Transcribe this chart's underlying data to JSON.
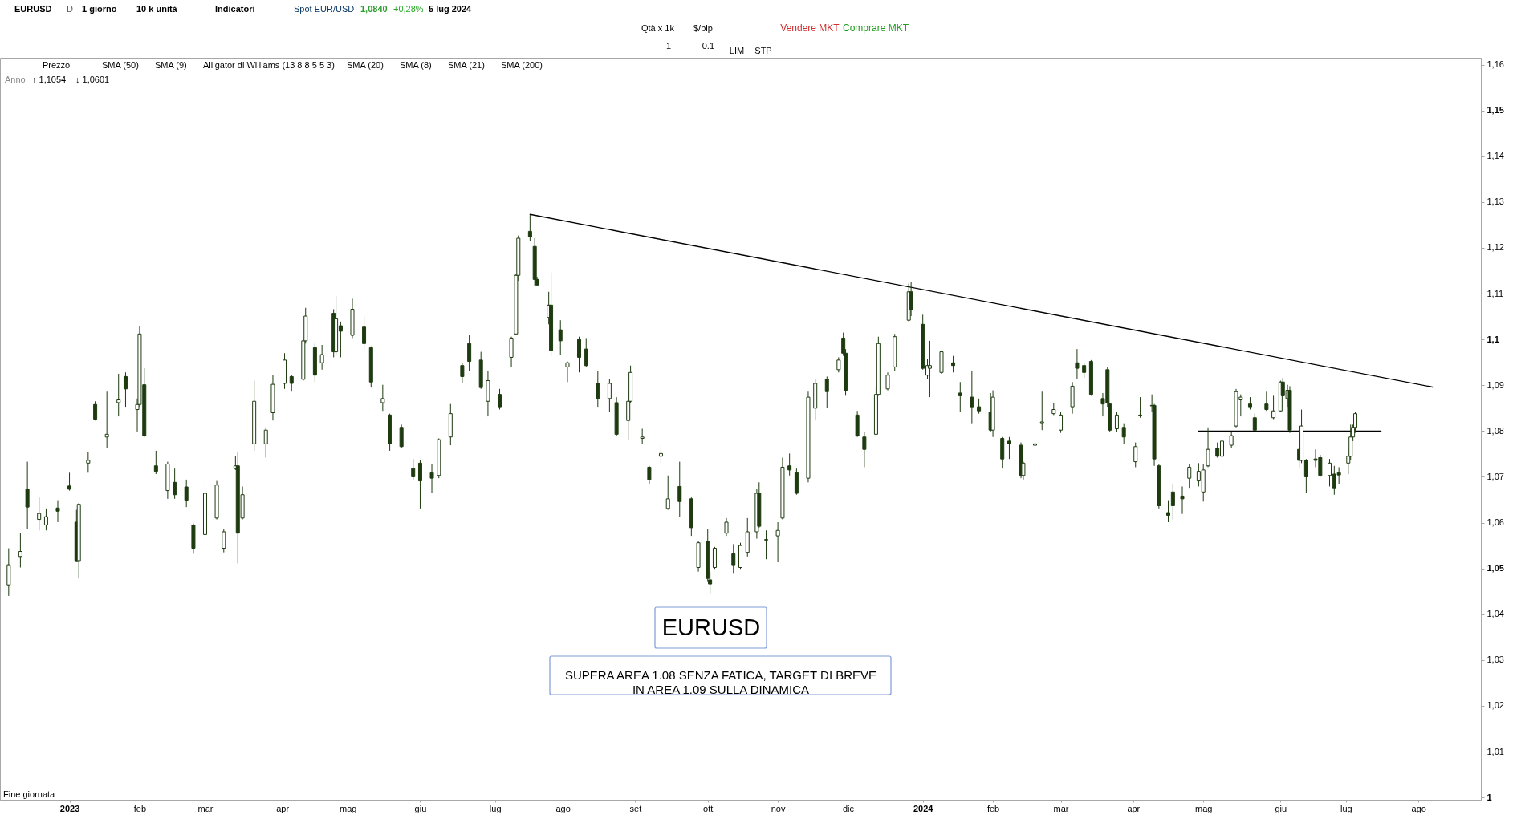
{
  "chart_data": {
    "type": "candlestick",
    "color": "#1e3b10",
    "x": [
      "2022-12-07",
      "2022-12-12",
      "2022-12-15",
      "2022-12-20",
      "2022-12-23",
      "2022-12-28",
      "2023-01-02",
      "2023-01-05",
      "2023-01-06",
      "2023-01-10",
      "2023-01-13",
      "2023-01-18",
      "2023-01-23",
      "2023-01-26",
      "2023-01-31",
      "2023-02-01",
      "2023-02-03",
      "2023-02-08",
      "2023-02-13",
      "2023-02-16",
      "2023-02-21",
      "2023-02-24",
      "2023-03-01",
      "2023-03-06",
      "2023-03-09",
      "2023-03-14",
      "2023-03-15",
      "2023-03-17",
      "2023-03-22",
      "2023-03-27",
      "2023-03-30",
      "2023-04-04",
      "2023-04-07",
      "2023-04-12",
      "2023-04-13",
      "2023-04-17",
      "2023-04-20",
      "2023-04-25",
      "2023-04-26",
      "2023-04-28",
      "2023-05-03",
      "2023-05-08",
      "2023-05-11",
      "2023-05-16",
      "2023-05-19",
      "2023-05-24",
      "2023-05-29",
      "2023-06-01",
      "2023-06-06",
      "2023-06-09",
      "2023-06-14",
      "2023-06-19",
      "2023-06-22",
      "2023-06-27",
      "2023-06-30",
      "2023-07-05",
      "2023-07-10",
      "2023-07-12",
      "2023-07-13",
      "2023-07-18",
      "2023-07-20",
      "2023-07-21",
      "2023-07-26",
      "2023-07-27",
      "2023-07-31",
      "2023-08-03",
      "2023-08-08",
      "2023-08-11",
      "2023-08-16",
      "2023-08-21",
      "2023-08-24",
      "2023-08-29",
      "2023-08-30",
      "2023-09-04",
      "2023-09-07",
      "2023-09-12",
      "2023-09-15",
      "2023-09-20",
      "2023-09-25",
      "2023-09-28",
      "2023-10-02",
      "2023-10-03",
      "2023-10-05",
      "2023-10-10",
      "2023-10-13",
      "2023-10-16",
      "2023-10-19",
      "2023-10-23",
      "2023-10-24",
      "2023-10-27",
      "2023-11-01",
      "2023-11-03",
      "2023-11-06",
      "2023-11-09",
      "2023-11-14",
      "2023-11-17",
      "2023-11-22",
      "2023-11-27",
      "2023-11-29",
      "2023-11-30",
      "2023-12-05",
      "2023-12-08",
      "2023-12-13",
      "2023-12-14",
      "2023-12-18",
      "2023-12-21",
      "2023-12-27",
      "2023-12-28",
      "2024-01-02",
      "2024-01-04",
      "2024-01-05",
      "2024-01-10",
      "2024-01-15",
      "2024-01-18",
      "2024-01-23",
      "2024-01-26",
      "2024-01-31",
      "2024-02-01",
      "2024-02-05",
      "2024-02-08",
      "2024-02-13",
      "2024-02-14",
      "2024-02-19",
      "2024-02-22",
      "2024-02-27",
      "2024-03-01",
      "2024-03-06",
      "2024-03-08",
      "2024-03-11",
      "2024-03-14",
      "2024-03-19",
      "2024-03-21",
      "2024-03-22",
      "2024-03-25",
      "2024-03-28",
      "2024-04-02",
      "2024-04-04",
      "2024-04-09",
      "2024-04-10",
      "2024-04-12",
      "2024-04-16",
      "2024-04-18",
      "2024-04-22",
      "2024-04-25",
      "2024-04-29",
      "2024-05-01",
      "2024-05-03",
      "2024-05-07",
      "2024-05-09",
      "2024-05-13",
      "2024-05-15",
      "2024-05-17",
      "2024-05-21",
      "2024-05-23",
      "2024-05-28",
      "2024-05-31",
      "2024-06-03",
      "2024-06-04",
      "2024-06-06",
      "2024-06-07",
      "2024-06-11",
      "2024-06-12",
      "2024-06-14",
      "2024-06-18",
      "2024-06-20",
      "2024-06-24",
      "2024-06-26",
      "2024-06-28",
      "2024-07-02",
      "2024-07-03",
      "2024-07-04",
      "2024-07-05"
    ],
    "ohlc": [
      [
        1.0464,
        1.0544,
        1.044,
        1.0508
      ],
      [
        1.0526,
        1.0577,
        1.0502,
        1.0537
      ],
      [
        1.0673,
        1.0733,
        1.0586,
        1.0634
      ],
      [
        1.0607,
        1.0655,
        1.0583,
        1.062
      ],
      [
        1.0595,
        1.0631,
        1.0583,
        1.0613
      ],
      [
        1.0632,
        1.0649,
        1.0601,
        1.0625
      ],
      [
        1.068,
        1.0709,
        1.067,
        1.0673
      ],
      [
        1.0601,
        1.0628,
        1.0514,
        1.0517
      ],
      [
        1.0517,
        1.0643,
        1.0478,
        1.064
      ],
      [
        1.073,
        1.0754,
        1.0709,
        1.0736
      ],
      [
        1.0858,
        1.0865,
        1.0823,
        1.0826
      ],
      [
        1.0787,
        1.0886,
        1.0763,
        1.0793
      ],
      [
        1.0862,
        1.0925,
        1.0832,
        1.0868
      ],
      [
        1.0919,
        1.0928,
        1.0853,
        1.0892
      ],
      [
        1.0847,
        1.0871,
        1.0799,
        1.0858
      ],
      [
        1.0858,
        1.103,
        1.0853,
        1.1012
      ],
      [
        1.0901,
        1.0937,
        1.0787,
        1.079
      ],
      [
        1.0724,
        1.0757,
        1.0706,
        1.0712
      ],
      [
        1.067,
        1.0733,
        1.0652,
        1.0728
      ],
      [
        1.0688,
        1.0718,
        1.0652,
        1.0661
      ],
      [
        1.0678,
        1.0694,
        1.0634,
        1.0649
      ],
      [
        1.0594,
        1.0598,
        1.0532,
        1.0544
      ],
      [
        1.0574,
        1.0688,
        1.0562,
        1.0664
      ],
      [
        1.061,
        1.0691,
        1.0607,
        1.0682
      ],
      [
        1.0544,
        1.0586,
        1.0535,
        1.058
      ],
      [
        1.0718,
        1.0745,
        1.0715,
        1.0724
      ],
      [
        1.0724,
        1.0754,
        1.0511,
        1.0577
      ],
      [
        1.061,
        1.0679,
        1.0607,
        1.0661
      ],
      [
        1.0772,
        1.091,
        1.0757,
        1.0865
      ],
      [
        1.0772,
        1.0808,
        1.0742,
        1.0802
      ],
      [
        1.084,
        1.0922,
        1.0823,
        1.0902
      ],
      [
        1.0904,
        1.097,
        1.0892,
        1.0955
      ],
      [
        1.0919,
        1.0922,
        1.0886,
        1.0904
      ],
      [
        1.0913,
        1.1003,
        1.091,
        1.0997
      ],
      [
        1.0997,
        1.1069,
        1.0991,
        1.1051
      ],
      [
        1.0982,
        1.0991,
        1.0907,
        1.0922
      ],
      [
        1.0949,
        1.0988,
        1.0934,
        1.0967
      ],
      [
        1.1057,
        1.1066,
        1.0961,
        1.0973
      ],
      [
        1.0973,
        1.1095,
        1.0967,
        1.1045
      ],
      [
        1.103,
        1.1039,
        1.0961,
        1.1018
      ],
      [
        1.1009,
        1.1089,
        1.1003,
        1.1066
      ],
      [
        1.1027,
        1.1051,
        1.0979,
        1.0991
      ],
      [
        1.0982,
        1.0985,
        1.0895,
        1.0907
      ],
      [
        1.0862,
        1.0901,
        1.0844,
        1.0871
      ],
      [
        1.0835,
        1.0838,
        1.0757,
        1.0772
      ],
      [
        1.0808,
        1.0814,
        1.0763,
        1.0766
      ],
      [
        1.0718,
        1.0739,
        1.0694,
        1.07
      ],
      [
        1.073,
        1.0736,
        1.0631,
        1.0691
      ],
      [
        1.0709,
        1.0727,
        1.0664,
        1.0697
      ],
      [
        1.0703,
        1.0784,
        1.0697,
        1.0781
      ],
      [
        1.0787,
        1.0859,
        1.0769,
        1.0838
      ],
      [
        1.0943,
        1.0949,
        1.0904,
        1.0919
      ],
      [
        1.0991,
        1.1009,
        1.0931,
        1.0952
      ],
      [
        1.0955,
        1.0973,
        1.0892,
        1.0895
      ],
      [
        1.0865,
        1.0931,
        1.0832,
        1.091
      ],
      [
        1.088,
        1.0892,
        1.0847,
        1.0853
      ],
      [
        1.0961,
        1.1006,
        1.094,
        1.1003
      ],
      [
        1.1012,
        1.1143,
        1.1009,
        1.114
      ],
      [
        1.114,
        1.1227,
        1.1128,
        1.1221
      ],
      [
        1.1236,
        1.1272,
        1.1215,
        1.1224
      ],
      [
        1.1203,
        1.1221,
        1.1116,
        1.1131
      ],
      [
        1.1131,
        1.1137,
        1.1116,
        1.1119
      ],
      [
        1.1048,
        1.1104,
        1.1033,
        1.1075
      ],
      [
        1.1075,
        1.1146,
        1.0964,
        1.0976
      ],
      [
        1.1021,
        1.1042,
        1.0967,
        1.0997
      ],
      [
        1.094,
        1.0952,
        1.0907,
        1.0949
      ],
      [
        1.1,
        1.1006,
        1.0928,
        1.0961
      ],
      [
        1.0979,
        1.1003,
        1.094,
        1.0943
      ],
      [
        1.0904,
        1.0931,
        1.0853,
        1.0871
      ],
      [
        1.0871,
        1.0913,
        1.0841,
        1.0904
      ],
      [
        1.0862,
        1.0874,
        1.079,
        1.0793
      ],
      [
        1.0823,
        1.0889,
        1.0781,
        1.0865
      ],
      [
        1.0865,
        1.0943,
        1.0862,
        1.0928
      ],
      [
        1.0784,
        1.0805,
        1.0772,
        1.0787
      ],
      [
        1.0721,
        1.0724,
        1.0685,
        1.0694
      ],
      [
        1.0745,
        1.0766,
        1.073,
        1.0751
      ],
      [
        1.0631,
        1.0703,
        1.0628,
        1.0652
      ],
      [
        1.0679,
        1.0733,
        1.0613,
        1.0646
      ],
      [
        1.0652,
        1.0655,
        1.0571,
        1.0589
      ],
      [
        1.0502,
        1.0559,
        1.0493,
        1.0556
      ],
      [
        1.0559,
        1.0586,
        1.0472,
        1.0478
      ],
      [
        1.0475,
        1.0493,
        1.0446,
        1.0466
      ],
      [
        1.0502,
        1.0547,
        1.0499,
        1.0544
      ],
      [
        1.0577,
        1.061,
        1.0571,
        1.0601
      ],
      [
        1.0532,
        1.0553,
        1.049,
        1.0508
      ],
      [
        1.0502,
        1.0556,
        1.0499,
        1.055
      ],
      [
        1.0535,
        1.061,
        1.0526,
        1.058
      ],
      [
        1.058,
        1.0673,
        1.0565,
        1.0664
      ],
      [
        1.0664,
        1.0688,
        1.0589,
        1.0592
      ],
      [
        1.0563,
        1.0583,
        1.052,
        1.0562
      ],
      [
        1.0571,
        1.0601,
        1.0514,
        1.0583
      ],
      [
        1.061,
        1.0742,
        1.0607,
        1.0721
      ],
      [
        1.0724,
        1.0751,
        1.0703,
        1.0715
      ],
      [
        1.0709,
        1.0718,
        1.0661,
        1.0664
      ],
      [
        1.0697,
        1.0886,
        1.0688,
        1.0874
      ],
      [
        1.085,
        1.0913,
        1.0823,
        1.0904
      ],
      [
        1.0913,
        1.0919,
        1.085,
        1.0886
      ],
      [
        1.0934,
        1.0961,
        1.0928,
        1.0955
      ],
      [
        1.1003,
        1.1015,
        1.0964,
        1.097
      ],
      [
        1.097,
        1.0979,
        1.0877,
        1.0889
      ],
      [
        1.0835,
        1.0844,
        1.0787,
        1.079
      ],
      [
        1.0787,
        1.0799,
        1.0721,
        1.076
      ],
      [
        1.0793,
        1.0895,
        1.0787,
        1.088
      ],
      [
        1.088,
        1.1006,
        1.0877,
        1.0991
      ],
      [
        1.0892,
        1.0928,
        1.0889,
        1.0922
      ],
      [
        1.094,
        1.1012,
        1.0931,
        1.1006
      ],
      [
        1.1042,
        1.1122,
        1.1039,
        1.1104
      ],
      [
        1.1104,
        1.1125,
        1.1051,
        1.1066
      ],
      [
        1.1033,
        1.1054,
        1.0934,
        1.0937
      ],
      [
        1.0922,
        1.0958,
        1.0913,
        1.0943
      ],
      [
        1.0937,
        1.0997,
        1.0874,
        1.0943
      ],
      [
        1.0928,
        1.0976,
        1.0925,
        1.0973
      ],
      [
        1.0949,
        1.0964,
        1.0928,
        1.0943
      ],
      [
        1.0883,
        1.0907,
        1.0841,
        1.0877
      ],
      [
        1.0874,
        1.0931,
        1.0817,
        1.0853
      ],
      [
        1.0853,
        1.0871,
        1.0838,
        1.0844
      ],
      [
        1.0841,
        1.0883,
        1.0799,
        1.0802
      ],
      [
        1.0802,
        1.0889,
        1.0787,
        1.0874
      ],
      [
        1.0784,
        1.0787,
        1.0718,
        1.0739
      ],
      [
        1.0778,
        1.0787,
        1.0739,
        1.0772
      ],
      [
        1.0769,
        1.0775,
        1.0697,
        1.0703
      ],
      [
        1.0703,
        1.0733,
        1.0694,
        1.073
      ],
      [
        1.0769,
        1.0781,
        1.0751,
        1.0772
      ],
      [
        1.0818,
        1.0886,
        1.0802,
        1.082
      ],
      [
        1.0838,
        1.0862,
        1.0835,
        1.0847
      ],
      [
        1.0802,
        1.0841,
        1.0796,
        1.0835
      ],
      [
        1.0853,
        1.0907,
        1.0838,
        1.0898
      ],
      [
        1.0949,
        1.0979,
        1.0913,
        1.0937
      ],
      [
        1.0943,
        1.0949,
        1.0916,
        1.0928
      ],
      [
        1.0952,
        1.0955,
        1.0877,
        1.088
      ],
      [
        1.0871,
        1.0883,
        1.0832,
        1.0859
      ],
      [
        1.0934,
        1.094,
        1.0853,
        1.0862
      ],
      [
        1.0859,
        1.0862,
        1.0799,
        1.0802
      ],
      [
        1.0805,
        1.0841,
        1.0799,
        1.0835
      ],
      [
        1.0808,
        1.0817,
        1.0772,
        1.0787
      ],
      [
        1.0733,
        1.0775,
        1.0721,
        1.0766
      ],
      [
        1.0834,
        1.0874,
        1.0829,
        1.0835
      ],
      [
        1.0855,
        1.088,
        1.0841,
        1.0856
      ],
      [
        1.0856,
        1.0859,
        1.0724,
        1.0739
      ],
      [
        1.0724,
        1.0727,
        1.0631,
        1.0637
      ],
      [
        1.0622,
        1.0649,
        1.0601,
        1.0616
      ],
      [
        1.0667,
        1.0685,
        1.0607,
        1.0637
      ],
      [
        1.0658,
        1.0679,
        1.0619,
        1.0652
      ],
      [
        1.0697,
        1.0727,
        1.0676,
        1.0721
      ],
      [
        1.0691,
        1.073,
        1.0679,
        1.0712
      ],
      [
        1.0667,
        1.0727,
        1.0646,
        1.0715
      ],
      [
        1.0724,
        1.0808,
        1.0721,
        1.076
      ],
      [
        1.0763,
        1.0775,
        1.0742,
        1.0745
      ],
      [
        1.0745,
        1.0784,
        1.0721,
        1.0778
      ],
      [
        1.0769,
        1.0799,
        1.0763,
        1.079
      ],
      [
        1.0811,
        1.0892,
        1.0808,
        1.0886
      ],
      [
        1.0868,
        1.088,
        1.0832,
        1.0874
      ],
      [
        1.0859,
        1.0874,
        1.0847,
        1.0853
      ],
      [
        1.0829,
        1.0838,
        1.0799,
        1.0802
      ],
      [
        1.0859,
        1.0886,
        1.0844,
        1.0847
      ],
      [
        1.0829,
        1.0877,
        1.0826,
        1.0844
      ],
      [
        1.0844,
        1.091,
        1.0841,
        1.0907
      ],
      [
        1.0907,
        1.0916,
        1.0853,
        1.0877
      ],
      [
        1.0871,
        1.0901,
        1.0853,
        1.0889
      ],
      [
        1.0889,
        1.0898,
        1.0796,
        1.0802
      ],
      [
        1.076,
        1.0775,
        1.0718,
        1.0736
      ],
      [
        1.0736,
        1.0847,
        1.073,
        1.0811
      ],
      [
        1.0736,
        1.0739,
        1.0664,
        1.07
      ],
      [
        1.0739,
        1.076,
        1.0721,
        1.0736
      ],
      [
        1.0742,
        1.0748,
        1.07,
        1.0703
      ],
      [
        1.0703,
        1.0739,
        1.0679,
        1.073
      ],
      [
        1.0706,
        1.0724,
        1.0661,
        1.0676
      ],
      [
        1.0709,
        1.0721,
        1.0685,
        1.0704
      ],
      [
        1.073,
        1.076,
        1.0706,
        1.0745
      ],
      [
        1.0745,
        1.0814,
        1.0736,
        1.0787
      ],
      [
        1.0787,
        1.0814,
        1.0778,
        1.0808
      ],
      [
        1.0808,
        1.0841,
        1.0796,
        1.0838
      ]
    ],
    "series": [
      {
        "type": "line",
        "x": [
          "2023-07-18",
          "2024-08-07"
        ],
        "values": [
          1.1273,
          1.0896
        ],
        "color": "#000000"
      },
      {
        "type": "line",
        "x": [
          "2024-04-29",
          "2024-07-16"
        ],
        "values": [
          1.08,
          1.08
        ],
        "color": "#000000"
      }
    ],
    "xlim": [
      "2022-12-05",
      "2024-08-26"
    ],
    "xticks": [
      {
        "value": "2023-01-02",
        "label": "2023"
      },
      {
        "value": "2023-02-01",
        "label": "feb"
      },
      {
        "value": "2023-03-01",
        "label": "mar"
      },
      {
        "value": "2023-04-03",
        "label": "apr"
      },
      {
        "value": "2023-05-01",
        "label": "mag"
      },
      {
        "value": "2023-06-01",
        "label": "giu"
      },
      {
        "value": "2023-07-03",
        "label": "lug"
      },
      {
        "value": "2023-08-01",
        "label": "ago"
      },
      {
        "value": "2023-09-01",
        "label": "set"
      },
      {
        "value": "2023-10-02",
        "label": "ott"
      },
      {
        "value": "2023-11-01",
        "label": "nov"
      },
      {
        "value": "2023-12-01",
        "label": "dic"
      },
      {
        "value": "2024-01-02",
        "label": "2024"
      },
      {
        "value": "2024-02-01",
        "label": "feb"
      },
      {
        "value": "2024-03-01",
        "label": "mar"
      },
      {
        "value": "2024-04-01",
        "label": "apr"
      },
      {
        "value": "2024-05-01",
        "label": "mag"
      },
      {
        "value": "2024-06-03",
        "label": "giu"
      },
      {
        "value": "2024-07-01",
        "label": "lug"
      },
      {
        "value": "2024-08-01",
        "label": "ago"
      }
    ],
    "ylim": [
      0.9995,
      1.1615
    ],
    "yticks": [
      1,
      {
        "value": 1.01,
        "label": "1,01"
      },
      {
        "value": 1.02,
        "label": "1,02"
      },
      {
        "value": 1.03,
        "label": "1,03"
      },
      {
        "value": 1.04,
        "label": "1,04"
      },
      {
        "value": 1.05,
        "label": "1,05"
      },
      {
        "value": 1.06,
        "label": "1,06"
      },
      {
        "value": 1.07,
        "label": "1,07"
      },
      {
        "value": 1.08,
        "label": "1,08"
      },
      {
        "value": 1.09,
        "label": "1,09"
      },
      {
        "value": 1.1,
        "label": "1,1"
      },
      {
        "value": 1.11,
        "label": "1,11"
      },
      {
        "value": 1.12,
        "label": "1,12"
      },
      {
        "value": 1.13,
        "label": "1,13"
      },
      {
        "value": 1.14,
        "label": "1,14"
      },
      {
        "value": 1.15,
        "label": "1,15"
      },
      {
        "value": 1.16,
        "label": "1,16"
      }
    ],
    "annotations": [
      "EURUSD",
      "SUPERA AREA 1.08 SENZA FATICA, TARGET DI BREVE\nIN AREA 1.09 SULLA DINAMICA",
      "Fine giornata",
      "EURUSD",
      "D",
      "1 giorno",
      "10 k unità",
      "Indicatori",
      "Spot EUR/USD",
      "1,0840",
      "+0,28%",
      "5 lug 2024",
      "Qtà x 1k",
      "$/pip",
      "1",
      "0.1",
      "LIM",
      "STP",
      "Vendere MKT",
      "Comprare MKT",
      "Prezzo",
      "SMA (50)",
      "SMA (9)",
      "Alligator di Williams (13 8 8 5 5 3)",
      "SMA (20)",
      "SMA (8)",
      "SMA (21)",
      "SMA (200)",
      "Anno",
      "↑ 1,1054",
      "↓ 1,0601"
    ]
  }
}
